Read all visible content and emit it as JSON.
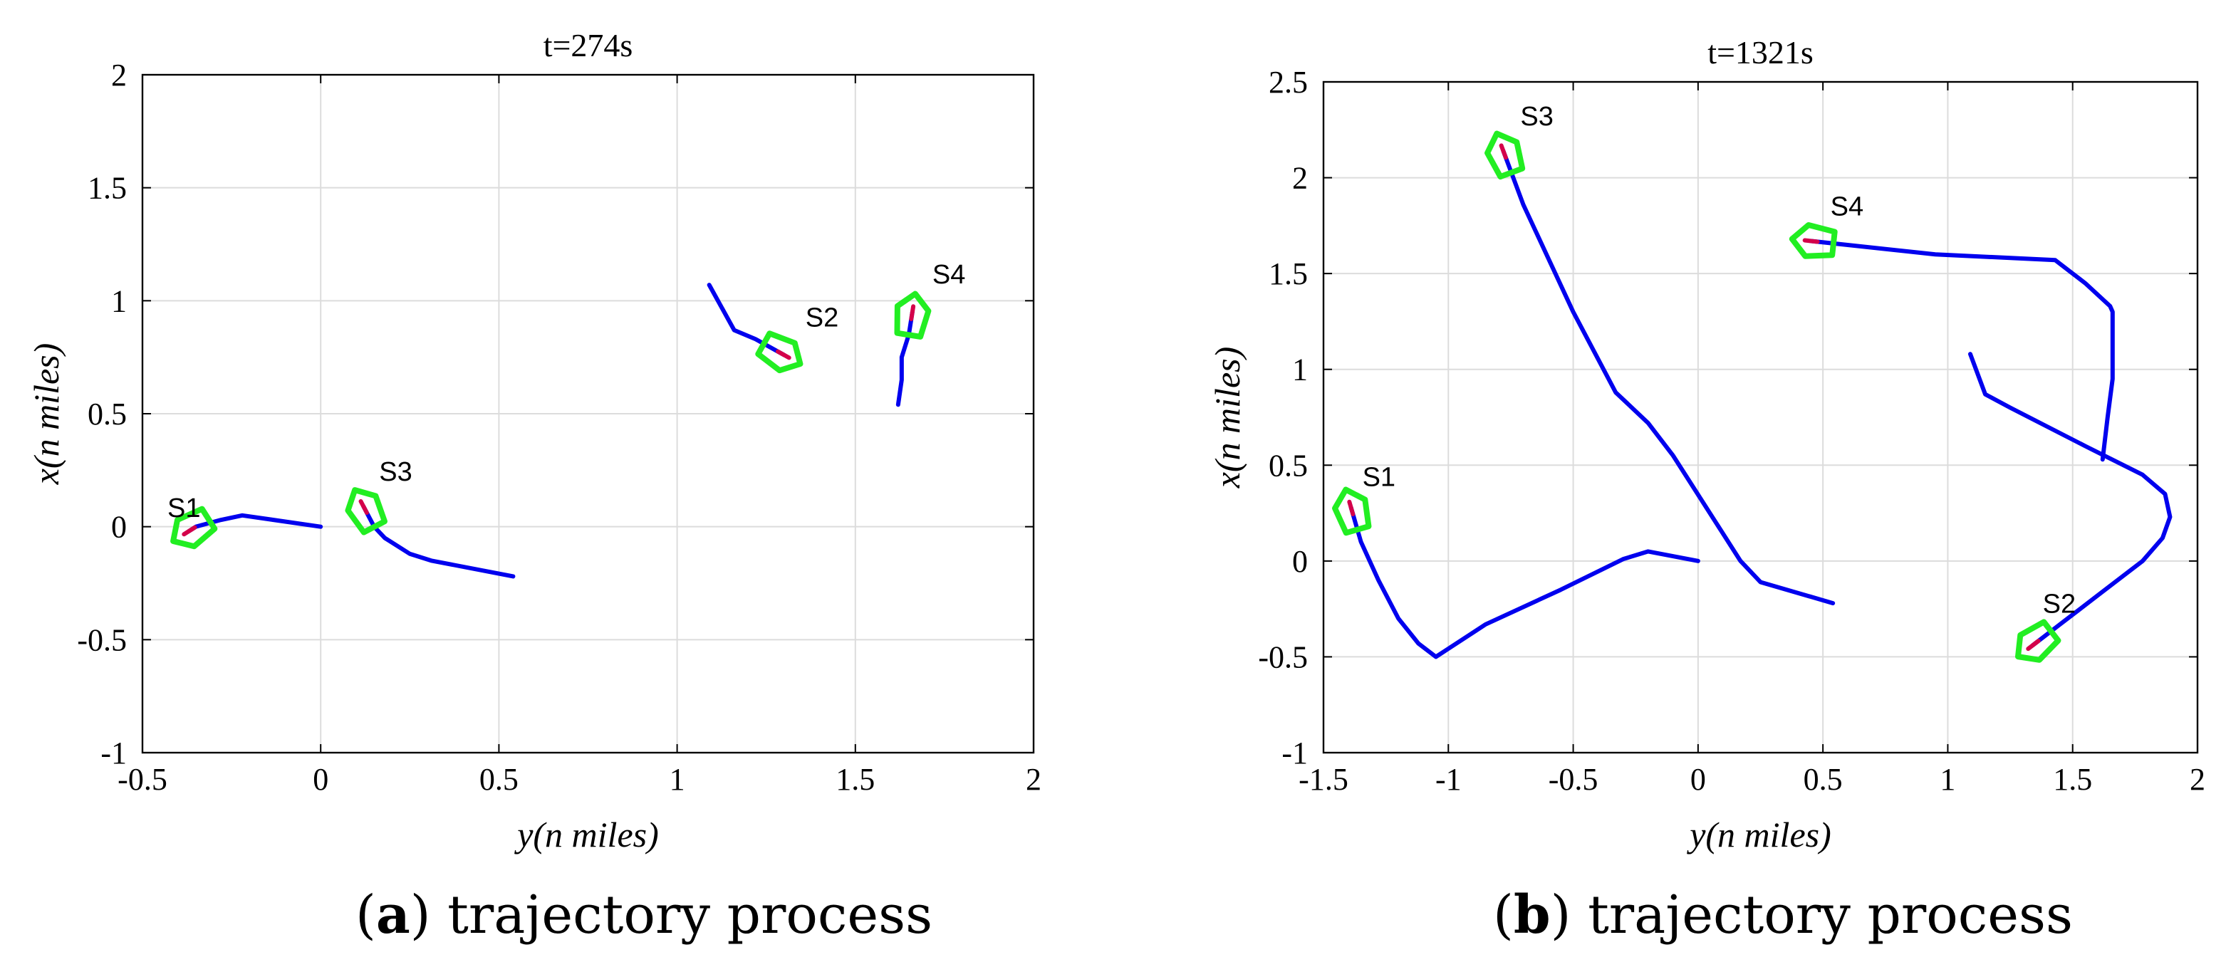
{
  "chart_data": [
    {
      "type": "line",
      "title": "t=274s",
      "xlabel": "y(n miles)",
      "ylabel": "x(n miles)",
      "xlim": [
        -0.5,
        2
      ],
      "ylim": [
        -1,
        2
      ],
      "xticks": [
        -0.5,
        0,
        0.5,
        1,
        1.5,
        2
      ],
      "yticks": [
        -1,
        -0.5,
        0,
        0.5,
        1,
        1.5,
        2
      ],
      "xtick_labels": [
        "-0.5",
        "0",
        "0.5",
        "1",
        "1.5",
        "2"
      ],
      "ytick_labels": [
        "-1",
        "-0.5",
        "0",
        "0.5",
        "1",
        "1.5",
        "2"
      ],
      "grid": true,
      "caption_letter": "a",
      "caption_text": "trajectory process",
      "series": [
        {
          "name": "S1",
          "x": [
            0,
            -0.22,
            -0.28,
            -0.35,
            -0.37
          ],
          "y": [
            0,
            0.05,
            0.03,
            0.0,
            -0.02
          ]
        },
        {
          "name": "S2",
          "x": [
            1.09,
            1.16,
            1.22,
            1.3
          ],
          "y": [
            1.07,
            0.87,
            0.83,
            0.76
          ]
        },
        {
          "name": "S3",
          "x": [
            0.54,
            0.31,
            0.25,
            0.18,
            0.15,
            0.12
          ],
          "y": [
            -0.22,
            -0.15,
            -0.12,
            -0.05,
            0.0,
            0.09
          ]
        },
        {
          "name": "S4",
          "x": [
            1.62,
            1.63,
            1.63,
            1.65,
            1.66
          ],
          "y": [
            0.54,
            0.65,
            0.75,
            0.85,
            0.95
          ]
        }
      ]
    },
    {
      "type": "line",
      "title": "t=1321s",
      "xlabel": "y(n miles)",
      "ylabel": "x(n miles)",
      "xlim": [
        -1.5,
        2
      ],
      "ylim": [
        -1,
        2.5
      ],
      "xticks": [
        -1.5,
        -1,
        -0.5,
        0,
        0.5,
        1,
        1.5,
        2
      ],
      "yticks": [
        -1,
        -0.5,
        0,
        0.5,
        1,
        1.5,
        2,
        2.5
      ],
      "xtick_labels": [
        "-1.5",
        "-1",
        "-0.5",
        "0",
        "0.5",
        "1",
        "1.5",
        "2"
      ],
      "ytick_labels": [
        "-1",
        "-0.5",
        "0",
        "0.5",
        "1",
        "1.5",
        "2",
        "2.5"
      ],
      "grid": true,
      "caption_letter": "b",
      "caption_text": "trajectory process",
      "series": [
        {
          "name": "S1",
          "x": [
            0,
            -0.2,
            -0.3,
            -0.55,
            -0.85,
            -1.05,
            -1.12,
            -1.2,
            -1.28,
            -1.35,
            -1.39
          ],
          "y": [
            0,
            0.05,
            0.01,
            -0.15,
            -0.33,
            -0.5,
            -0.43,
            -0.3,
            -0.1,
            0.1,
            0.28
          ]
        },
        {
          "name": "S2",
          "x": [
            1.09,
            1.15,
            1.25,
            1.55,
            1.78,
            1.87,
            1.89,
            1.86,
            1.78,
            1.6,
            1.45,
            1.34
          ],
          "y": [
            1.08,
            0.87,
            0.8,
            0.6,
            0.45,
            0.35,
            0.23,
            0.12,
            0.0,
            -0.18,
            -0.33,
            -0.44
          ]
        },
        {
          "name": "S3",
          "x": [
            0.54,
            0.25,
            0.17,
            -0.1,
            -0.2,
            -0.33,
            -0.5,
            -0.6,
            -0.7,
            -0.78
          ],
          "y": [
            -0.22,
            -0.11,
            0.0,
            0.55,
            0.72,
            0.88,
            1.3,
            1.58,
            1.86,
            2.14
          ]
        },
        {
          "name": "S4",
          "x": [
            1.62,
            1.64,
            1.66,
            1.66,
            1.65,
            1.55,
            1.43,
            0.95,
            0.45
          ],
          "y": [
            0.53,
            0.75,
            0.95,
            1.3,
            1.33,
            1.45,
            1.57,
            1.6,
            1.67
          ]
        }
      ]
    }
  ],
  "colors": {
    "trajectory": "#0000ee",
    "ship_outline": "#22ee22",
    "heading_marker": "#d4004a",
    "grid": "#dcdcdc"
  }
}
